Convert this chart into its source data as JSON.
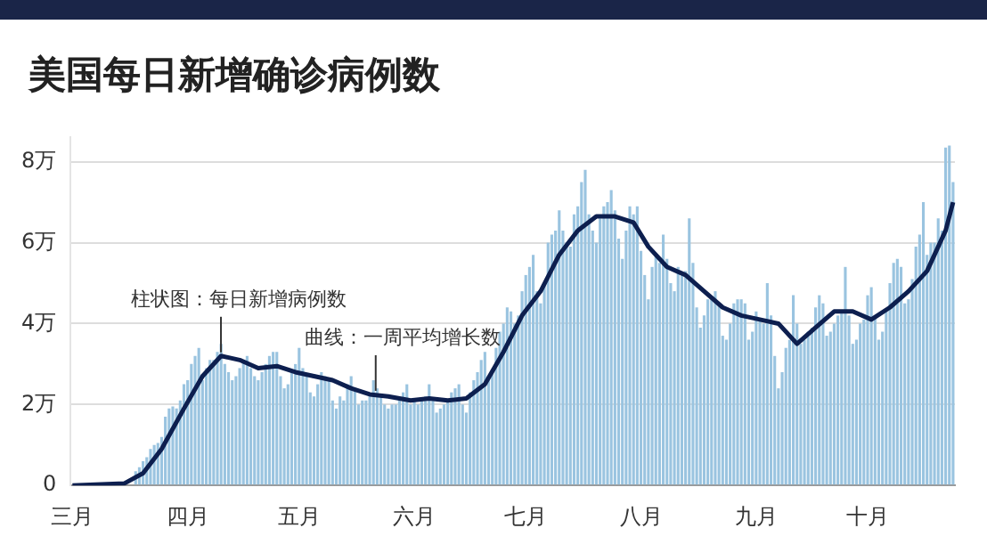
{
  "chart_data": {
    "type": "bar",
    "title": "美国每日新增确诊病例数",
    "categories": [
      "三月",
      null,
      null,
      null,
      null,
      null,
      null,
      null,
      null,
      null,
      null,
      null,
      null,
      null,
      null,
      null,
      null,
      null,
      null,
      null,
      null,
      null,
      null,
      null,
      null,
      null,
      null,
      null,
      null,
      null,
      null,
      "四月",
      null,
      null,
      null,
      null,
      null,
      null,
      null,
      null,
      null,
      null,
      null,
      null,
      null,
      null,
      null,
      null,
      null,
      null,
      null,
      null,
      null,
      null,
      null,
      null,
      null,
      null,
      null,
      null,
      null,
      "五月",
      null,
      null,
      null,
      null,
      null,
      null,
      null,
      null,
      null,
      null,
      null,
      null,
      null,
      null,
      null,
      null,
      null,
      null,
      null,
      null,
      null,
      null,
      null,
      null,
      null,
      null,
      null,
      null,
      null,
      null,
      "六月",
      null,
      null,
      null,
      null,
      null,
      null,
      null,
      null,
      null,
      null,
      null,
      null,
      null,
      null,
      null,
      null,
      null,
      null,
      null,
      null,
      null,
      null,
      null,
      null,
      null,
      null,
      null,
      null,
      null,
      "七月",
      null,
      null,
      null,
      null,
      null,
      null,
      null,
      null,
      null,
      null,
      null,
      null,
      null,
      null,
      null,
      null,
      null,
      null,
      null,
      null,
      null,
      null,
      null,
      null,
      null,
      null,
      null,
      null,
      null,
      null,
      "八月",
      null,
      null,
      null,
      null,
      null,
      null,
      null,
      null,
      null,
      null,
      null,
      null,
      null,
      null,
      null,
      null,
      null,
      null,
      null,
      null,
      null,
      null,
      null,
      null,
      null,
      null,
      null,
      null,
      null,
      null,
      "九月",
      null,
      null,
      null,
      null,
      null,
      null,
      null,
      null,
      null,
      null,
      null,
      null,
      null,
      null,
      null,
      null,
      null,
      null,
      null,
      null,
      null,
      null,
      null,
      null,
      null,
      null,
      null,
      null,
      null,
      "十月",
      null,
      null,
      null,
      null,
      null,
      null,
      null,
      null,
      null,
      null,
      null,
      null,
      null,
      null,
      null,
      null,
      null,
      null,
      null,
      null,
      null,
      null,
      null
    ],
    "series": [
      {
        "color": "#9ac4e0",
        "values": [
          0,
          0,
          0,
          0,
          0,
          0,
          0,
          0.01,
          0.02,
          0.03,
          null,
          0.05,
          null,
          null,
          null,
          null,
          null,
          0.35,
          0.45,
          0.6,
          0.7,
          0.9,
          1.0,
          1.05,
          1.2,
          1.7,
          1.9,
          1.95,
          1.9,
          2.1,
          2.5,
          2.6,
          3.0,
          3.2,
          3.4,
          2.6,
          2.9,
          3.1,
          3.1,
          3.3,
          3.5,
          3.0,
          2.8,
          2.6,
          2.7,
          2.9,
          3.1,
          3.2,
          2.9,
          2.7,
          2.6,
          2.8,
          3.0,
          3.2,
          3.3,
          3.3,
          2.7,
          2.4,
          2.5,
          2.8,
          3.0,
          3.4,
          2.9,
          2.7,
          2.3,
          2.2,
          2.5,
          2.8,
          2.7,
          2.6,
          2.1,
          1.9,
          2.2,
          2.1,
          2.5,
          2.7,
          2.4,
          2.0,
          2.1,
          2.1,
          2.2,
          2.6,
          2.4,
          2.2,
          2.0,
          1.9,
          2.0,
          2.0,
          2.1,
          2.3,
          2.5,
          2.0,
          2.1,
          2.0,
          2.1,
          2.2,
          2.5,
          2.1,
          1.8,
          1.9,
          2.0,
          2.1,
          2.3,
          2.4,
          2.5,
          2.0,
          1.8,
          2.3,
          2.6,
          2.8,
          3.1,
          3.3,
          2.7,
          2.8,
          3.4,
          3.8,
          4.0,
          4.4,
          4.3,
          4.0,
          4.2,
          4.8,
          5.2,
          5.4,
          5.7,
          4.8,
          4.5,
          5.0,
          6.0,
          6.2,
          6.3,
          6.8,
          6.3,
          6.0,
          5.9,
          6.7,
          6.9,
          7.5,
          7.8,
          6.7,
          6.3,
          6.0,
          6.6,
          6.9,
          7.0,
          7.3,
          6.8,
          6.1,
          5.6,
          6.3,
          6.9,
          6.7,
          6.9,
          5.8,
          5.2,
          4.6,
          5.4,
          5.7,
          5.5,
          6.2,
          5.6,
          5.0,
          4.8,
          5.4,
          5.2,
          5.3,
          6.6,
          5.5,
          4.4,
          3.9,
          4.2,
          4.6,
          4.6,
          4.8,
          4.5,
          3.7,
          3.6,
          4.0,
          4.5,
          4.6,
          4.6,
          4.5,
          3.6,
          3.8,
          4.3,
          4.1,
          4.0,
          5.0,
          4.2,
          3.2,
          2.4,
          2.8,
          3.4,
          3.6,
          4.7,
          4.0,
          3.5,
          3.6,
          3.8,
          3.9,
          4.4,
          4.7,
          4.5,
          3.7,
          3.8,
          4.0,
          4.2,
          4.3,
          5.4,
          4.2,
          3.5,
          3.6,
          4.0,
          4.1,
          4.7,
          4.9,
          4.2,
          3.6,
          3.8,
          4.3,
          5.0,
          5.5,
          5.6,
          5.4,
          4.5,
          4.6,
          5.1,
          5.9,
          6.2,
          7.0,
          5.7,
          6.0,
          6.0,
          6.6,
          6.3,
          8.35,
          8.4,
          7.5
        ]
      },
      {
        "type": "line",
        "color": "#0d1f4f",
        "values": [
          0,
          null,
          null,
          null,
          null,
          null,
          null,
          null,
          null,
          null,
          null,
          null,
          null,
          null,
          0.05,
          null,
          null,
          null,
          null,
          0.3,
          null,
          null,
          null,
          null,
          0.9,
          null,
          null,
          null,
          null,
          null,
          1.9,
          null,
          null,
          null,
          null,
          2.7,
          null,
          null,
          null,
          null,
          3.2,
          null,
          null,
          null,
          null,
          3.1,
          null,
          null,
          null,
          null,
          2.9,
          null,
          null,
          null,
          null,
          2.95,
          null,
          null,
          null,
          null,
          2.8,
          null,
          null,
          null,
          null,
          2.7,
          null,
          null,
          null,
          null,
          2.6,
          null,
          null,
          null,
          null,
          2.4,
          null,
          null,
          null,
          null,
          2.25,
          null,
          null,
          null,
          null,
          2.2,
          null,
          null,
          null,
          null,
          null,
          2.1,
          null,
          null,
          null,
          null,
          2.15,
          null,
          null,
          null,
          null,
          2.1,
          null,
          null,
          null,
          null,
          2.15,
          null,
          null,
          null,
          null,
          2.5,
          null,
          null,
          null,
          null,
          3.3,
          null,
          null,
          null,
          null,
          4.2,
          null,
          null,
          null,
          null,
          4.8,
          null,
          null,
          null,
          null,
          5.7,
          null,
          null,
          null,
          null,
          6.3,
          null,
          null,
          null,
          null,
          6.65,
          null,
          null,
          null,
          null,
          6.65,
          null,
          null,
          null,
          null,
          6.5,
          null,
          null,
          null,
          5.9,
          null,
          null,
          null,
          null,
          5.4,
          null,
          null,
          null,
          null,
          5.2,
          null,
          null,
          null,
          null,
          4.8,
          null,
          null,
          null,
          null,
          4.4,
          null,
          null,
          null,
          null,
          4.2,
          null,
          null,
          null,
          null,
          4.1,
          null,
          null,
          null,
          null,
          4.0,
          null,
          null,
          null,
          null,
          3.5,
          null,
          null,
          null,
          null,
          3.9,
          null,
          null,
          null,
          null,
          4.3,
          null,
          null,
          null,
          null,
          4.3,
          null,
          null,
          null,
          null,
          4.1,
          null,
          null,
          null,
          null,
          4.4,
          null,
          null,
          null,
          null,
          4.8,
          null,
          null,
          null,
          null,
          5.3,
          null,
          null,
          null,
          null,
          6.3,
          null,
          7.0
        ]
      }
    ],
    "ylim": [
      0,
      8.6
    ],
    "yticks": [
      0,
      {
        "value": 2,
        "label": "2万"
      },
      {
        "value": 4,
        "label": "4万"
      },
      {
        "value": 6,
        "label": "6万"
      },
      {
        "value": 8,
        "label": "8万"
      }
    ],
    "grid": "y",
    "legend": false,
    "marker": "none",
    "annotations": [
      {
        "text": "柱状图：每日新增病例数",
        "y": 3.2
      },
      {
        "text": "曲线：一周平均增长数",
        "y": 2.25
      }
    ]
  }
}
